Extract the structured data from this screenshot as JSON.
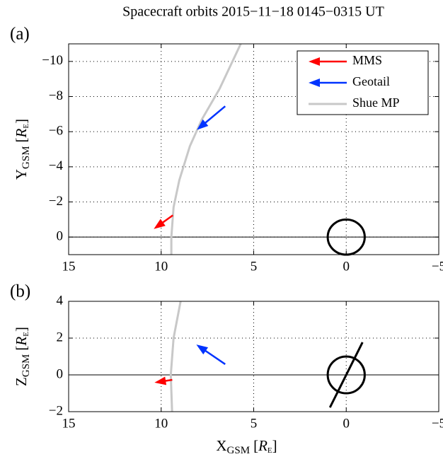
{
  "chart_data": [
    {
      "type": "trajectory",
      "title": "Spacecraft orbits  2015−11−18  0145−0315 UT",
      "panel_label": "(a)",
      "ylabel": {
        "main": "Y",
        "sub": "GSM",
        "open": "[",
        "unit": "R",
        "unit_sub": "E",
        "close": "]"
      },
      "xlim": [
        15,
        -5
      ],
      "xticks": [
        15,
        10,
        5,
        0,
        {
          "value": -5,
          "label": "−5"
        }
      ],
      "ylim": [
        1,
        -11
      ],
      "yticks": [
        0,
        {
          "value": -2,
          "label": "−2"
        },
        {
          "value": -4,
          "label": "−4"
        },
        {
          "value": -6,
          "label": "−6"
        },
        {
          "value": -8,
          "label": "−8"
        },
        {
          "value": -10,
          "label": "−10"
        }
      ],
      "grid": true,
      "zero_line": 0,
      "legend": "upper right",
      "earth": {
        "x": 0,
        "y": 0,
        "radius": 1
      },
      "series": [
        {
          "name": "MMS",
          "color": "#ff0000",
          "style": "arrow",
          "x": [
            9.37,
            10.4
          ],
          "values": [
            -1.24,
            -0.46
          ]
        },
        {
          "name": "Geotail",
          "color": "#0033ff",
          "style": "arrow",
          "x": [
            6.54,
            8.07
          ],
          "values": [
            -7.45,
            -6.1
          ]
        },
        {
          "name": "Shue MP",
          "color": "#c8c8c8",
          "style": "line",
          "x": [
            9.45,
            9.45,
            9.33,
            9.02,
            8.45,
            7.8,
            6.84,
            5.7
          ],
          "values": [
            1,
            0,
            -1.7,
            -3.24,
            -5.17,
            -6.7,
            -8.45,
            -11
          ]
        }
      ]
    },
    {
      "type": "trajectory",
      "panel_label": "(b)",
      "ylabel": {
        "main": "Z",
        "sub": "GSM",
        "open": "[",
        "unit": "R",
        "unit_sub": "E",
        "close": "]"
      },
      "xlabel": {
        "main": "X",
        "sub": "GSM",
        "open": "[",
        "unit": "R",
        "unit_sub": "E",
        "close": "]"
      },
      "xlim": [
        15,
        -5
      ],
      "xticks": [
        15,
        10,
        5,
        0,
        {
          "value": -5,
          "label": "−5"
        }
      ],
      "ylim": [
        -2,
        4
      ],
      "yticks": [
        {
          "value": -2,
          "label": "−2"
        },
        0,
        2,
        4
      ],
      "grid": true,
      "zero_line": 0,
      "earth": {
        "x": 0,
        "y": 0,
        "radius": 1
      },
      "dipole_axis": {
        "x": [
          0.88,
          -0.88
        ],
        "y": [
          -1.77,
          1.77
        ]
      },
      "series": [
        {
          "color": "#ff0000",
          "style": "arrow",
          "x": [
            9.4,
            10.36
          ],
          "values": [
            -0.27,
            -0.42
          ]
        },
        {
          "color": "#0033ff",
          "style": "arrow",
          "x": [
            6.54,
            8.1
          ],
          "values": [
            0.58,
            1.65
          ]
        },
        {
          "color": "#c8c8c8",
          "style": "line",
          "x": [
            9.41,
            9.48,
            9.33,
            8.95
          ],
          "values": [
            -2,
            0,
            2,
            4
          ]
        }
      ]
    }
  ]
}
